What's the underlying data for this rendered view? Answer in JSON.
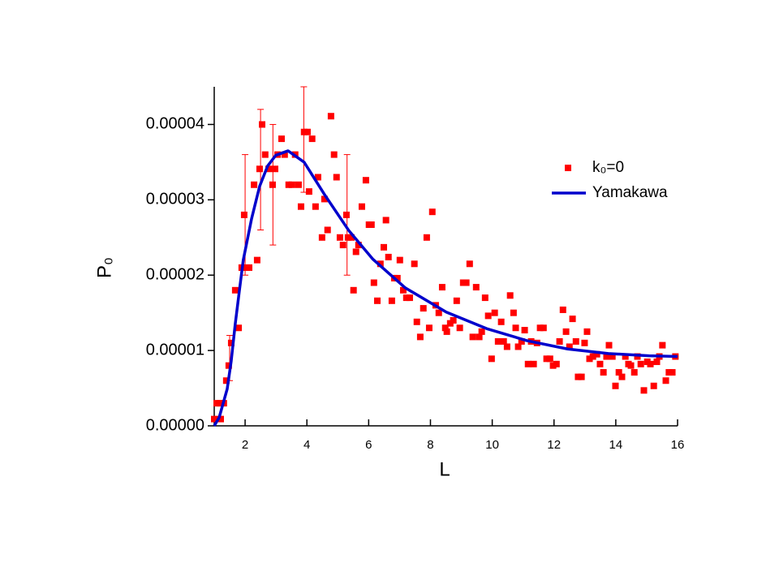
{
  "chart_data": {
    "type": "scatter",
    "x_label": "L",
    "y_label": "P₀",
    "xlim": [
      1,
      16
    ],
    "xticks": [
      2,
      4,
      6,
      8,
      10,
      12,
      14,
      16
    ],
    "ylim": [
      0,
      4.5e-05
    ],
    "yticks": [
      {
        "value": 0,
        "label": "0.00000"
      },
      1e-05,
      2e-05,
      3e-05,
      4e-05
    ],
    "legend": "upper right",
    "series": [
      {
        "name": "k₀=0",
        "type": "scatter",
        "color": "#ff0000",
        "x": [
          1.0,
          1.08,
          1.18,
          1.21,
          1.31,
          1.39,
          1.47,
          1.55,
          1.68,
          1.79,
          1.89,
          1.97,
          2.05,
          2.13,
          2.29,
          2.39,
          2.47,
          2.55,
          2.65,
          2.76,
          2.89,
          2.97,
          3.05,
          3.18,
          3.28,
          3.41,
          3.52,
          3.62,
          3.73,
          3.81,
          3.91,
          4.02,
          4.07,
          4.17,
          4.28,
          4.36,
          4.49,
          4.57,
          4.67,
          4.78,
          4.88,
          4.96,
          5.07,
          5.17,
          5.28,
          5.33,
          5.44,
          5.51,
          5.59,
          5.67,
          5.78,
          5.91,
          6.01,
          6.09,
          6.17,
          6.28,
          6.38,
          6.49,
          6.56,
          6.64,
          6.75,
          6.83,
          6.93,
          7.01,
          7.12,
          7.22,
          7.33,
          7.48,
          7.56,
          7.67,
          7.77,
          7.88,
          7.96,
          8.06,
          8.17,
          8.27,
          8.38,
          8.48,
          8.53,
          8.64,
          8.74,
          8.85,
          8.95,
          9.06,
          9.16,
          9.27,
          9.37,
          9.48,
          9.58,
          9.66,
          9.77,
          9.87,
          9.98,
          10.08,
          10.19,
          10.29,
          10.37,
          10.48,
          10.58,
          10.69,
          10.76,
          10.84,
          10.95,
          11.05,
          11.16,
          11.26,
          11.34,
          11.45,
          11.55,
          11.66,
          11.76,
          11.87,
          11.97,
          12.08,
          12.18,
          12.29,
          12.39,
          12.5,
          12.6,
          12.71,
          12.78,
          12.89,
          12.99,
          13.07,
          13.15,
          13.26,
          13.39,
          13.49,
          13.6,
          13.7,
          13.78,
          13.89,
          13.99,
          14.1,
          14.2,
          14.31,
          14.41,
          14.49,
          14.6,
          14.7,
          14.81,
          14.91,
          15.02,
          15.12,
          15.23,
          15.33,
          15.41,
          15.51,
          15.62,
          15.72,
          15.83,
          15.93
        ],
        "values": [
          9e-07,
          3e-06,
          3e-06,
          9e-07,
          3e-06,
          6e-06,
          8e-06,
          1.1e-05,
          1.8e-05,
          1.3e-05,
          2.1e-05,
          2.8e-05,
          2.1e-05,
          2.1e-05,
          3.2e-05,
          2.2e-05,
          3.41e-05,
          4e-05,
          3.6e-05,
          3.41e-05,
          3.2e-05,
          3.41e-05,
          3.6e-05,
          3.81e-05,
          3.6e-05,
          3.2e-05,
          3.2e-05,
          3.6e-05,
          3.2e-05,
          2.91e-05,
          3.9e-05,
          3.9e-05,
          3.11e-05,
          3.81e-05,
          2.91e-05,
          3.3e-05,
          2.5e-05,
          3.01e-05,
          2.6e-05,
          4.11e-05,
          3.6e-05,
          3.3e-05,
          2.5e-05,
          2.4e-05,
          2.8e-05,
          2.5e-05,
          2.5e-05,
          1.8e-05,
          2.31e-05,
          2.4e-05,
          2.91e-05,
          3.26e-05,
          2.67e-05,
          2.67e-05,
          1.9e-05,
          1.66e-05,
          2.15e-05,
          2.37e-05,
          2.73e-05,
          2.24e-05,
          1.66e-05,
          1.96e-05,
          1.96e-05,
          2.2e-05,
          1.8e-05,
          1.7e-05,
          1.7e-05,
          2.15e-05,
          1.38e-05,
          1.18e-05,
          1.56e-05,
          2.5e-05,
          1.3e-05,
          2.84e-05,
          1.6e-05,
          1.5e-05,
          1.84e-05,
          1.3e-05,
          1.25e-05,
          1.36e-05,
          1.4e-05,
          1.66e-05,
          1.3e-05,
          1.9e-05,
          1.9e-05,
          2.15e-05,
          1.18e-05,
          1.84e-05,
          1.18e-05,
          1.25e-05,
          1.7e-05,
          1.46e-05,
          8.9e-06,
          1.5e-05,
          1.12e-05,
          1.38e-05,
          1.12e-05,
          1.05e-05,
          1.73e-05,
          1.5e-05,
          1.3e-05,
          1.05e-05,
          1.12e-05,
          1.27e-05,
          8.2e-06,
          1.12e-05,
          8.2e-06,
          1.1e-05,
          1.3e-05,
          1.3e-05,
          8.9e-06,
          8.9e-06,
          8e-06,
          8.2e-06,
          1.12e-05,
          1.54e-05,
          1.25e-05,
          1.05e-05,
          1.42e-05,
          1.12e-05,
          6.5e-06,
          6.5e-06,
          1.1e-05,
          1.25e-05,
          8.9e-06,
          9.2e-06,
          9.5e-06,
          8.2e-06,
          7.1e-06,
          9.2e-06,
          1.07e-05,
          9.2e-06,
          5.3e-06,
          7.1e-06,
          6.5e-06,
          9.2e-06,
          8.2e-06,
          8e-06,
          7.1e-06,
          9.2e-06,
          8.2e-06,
          4.7e-06,
          8.5e-06,
          8.2e-06,
          5.3e-06,
          8.5e-06,
          9.2e-06,
          1.07e-05,
          6e-06,
          7.1e-06,
          7.1e-06,
          9.2e-06
        ]
      },
      {
        "name": "Yamakawa",
        "type": "line",
        "color": "#0000cc",
        "x": [
          1,
          1.16,
          1.42,
          1.55,
          1.68,
          1.81,
          1.94,
          2.21,
          2.47,
          2.73,
          2.99,
          3.39,
          3.91,
          4.57,
          5.36,
          6.14,
          7.19,
          8.51,
          9.82,
          11.13,
          12.44,
          13.76,
          15.07,
          16
        ],
        "values": [
          0,
          1.1e-06,
          4.9e-06,
          8.6e-06,
          1.35e-05,
          1.78e-05,
          2.2e-05,
          2.75e-05,
          3.18e-05,
          3.45e-05,
          3.59e-05,
          3.65e-05,
          3.5e-05,
          3.07e-05,
          2.59e-05,
          2.21e-05,
          1.83e-05,
          1.51e-05,
          1.29e-05,
          1.13e-05,
          1.02e-05,
          9.6e-06,
          9.3e-06,
          9.2e-06
        ]
      }
    ],
    "error_bars": {
      "color": "#ff0000",
      "x": [
        1.5,
        2.0,
        2.5,
        2.9,
        3.9,
        5.3
      ],
      "y": [
        9e-06,
        2.8e-05,
        3.4e-05,
        3.2e-05,
        3.8e-05,
        2.8e-05
      ],
      "err": [
        3e-06,
        8e-06,
        8e-06,
        8e-06,
        7e-06,
        8e-06
      ]
    }
  }
}
